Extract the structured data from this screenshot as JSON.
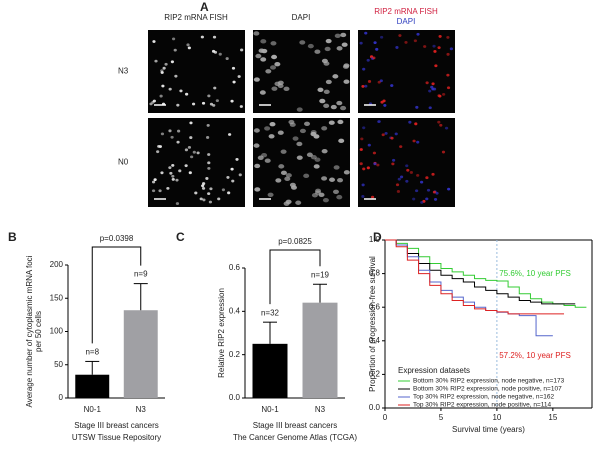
{
  "panel_a": {
    "label": "A",
    "columns": [
      "RIP2 mRNA FISH",
      "DAPI"
    ],
    "merge_lines": [
      "RIP2 mRNA FISH",
      "DAPI"
    ],
    "rows": [
      "N3",
      "N0"
    ]
  },
  "chart_data": [
    {
      "type": "bar",
      "panel": "B",
      "categories": [
        "N0-1",
        "N3"
      ],
      "values": [
        35,
        132
      ],
      "errors": [
        20,
        40
      ],
      "colors": [
        "#000000",
        "#a0a0a4"
      ],
      "ylim": [
        0,
        200
      ],
      "yticks": [
        0,
        50,
        100,
        150,
        200
      ],
      "ylabel": [
        "Average number of cytoplasmic mRNA foci",
        "per 50 cells"
      ],
      "xlabel": [
        "Stage III breast cancers",
        "UTSW Tissue Repository"
      ],
      "annotations": [
        "n=8",
        "n=9"
      ],
      "p_value": "p=0.0398"
    },
    {
      "type": "bar",
      "panel": "C",
      "categories": [
        "N0-1",
        "N3"
      ],
      "values": [
        0.25,
        0.44
      ],
      "errors": [
        0.1,
        0.085
      ],
      "colors": [
        "#000000",
        "#a0a0a4"
      ],
      "ylim": [
        0,
        0.6
      ],
      "yticks": [
        {
          "value": 0,
          "label": "0.0"
        },
        0.2,
        0.4,
        0.6
      ],
      "ylabel": [
        "Relative RIP2 expression"
      ],
      "xlabel": [
        "Stage III breast cancers",
        "The Cancer Genome Atlas (TCGA)"
      ],
      "annotations": [
        "n=32",
        "n=19"
      ],
      "p_value": "p=0.0825"
    },
    {
      "type": "line",
      "panel": "D",
      "xlim": [
        0,
        18.5
      ],
      "xticks": [
        0,
        5,
        10,
        15
      ],
      "ylim": [
        0,
        1
      ],
      "yticks": [
        {
          "value": 0,
          "label": "0.0"
        },
        0.2,
        0.4,
        0.6,
        0.8,
        {
          "value": 1,
          "label": "1.0"
        }
      ],
      "xlabel": "Survival time (years)",
      "ylabel": "Proportion of progression-free survival",
      "vline": 10,
      "legend_title": "Expression datasets",
      "series": [
        {
          "name": "Bottom 30% RIP2 expression, node negative, n=173",
          "color": "#33cc33",
          "x": [
            0,
            1,
            2,
            3,
            4,
            5,
            6,
            7,
            8,
            9,
            10,
            11,
            12,
            13,
            14,
            15,
            16,
            17,
            18
          ],
          "values": [
            1,
            0.98,
            0.95,
            0.9,
            0.86,
            0.83,
            0.81,
            0.79,
            0.77,
            0.76,
            0.756,
            0.72,
            0.68,
            0.65,
            0.63,
            0.62,
            0.61,
            0.6,
            0.6
          ]
        },
        {
          "name": "Bottom 30% RIP2 expression, node positive, n=107",
          "color": "#000000",
          "x": [
            0,
            1,
            2,
            3,
            4,
            5,
            6,
            7,
            8,
            9,
            10,
            11,
            12,
            13,
            14,
            15,
            16,
            17
          ],
          "values": [
            1,
            0.97,
            0.92,
            0.86,
            0.82,
            0.79,
            0.77,
            0.75,
            0.72,
            0.7,
            0.68,
            0.66,
            0.64,
            0.63,
            0.62,
            0.62,
            0.62,
            0.62
          ]
        },
        {
          "name": "Top 30% RIP2 expression, node negative, n=162",
          "color": "#5566cc",
          "x": [
            0,
            1,
            2,
            3,
            4,
            5,
            6,
            7,
            8,
            9,
            10,
            11,
            12,
            13,
            13.5,
            15
          ],
          "values": [
            1,
            0.97,
            0.9,
            0.82,
            0.75,
            0.7,
            0.66,
            0.63,
            0.6,
            0.58,
            0.57,
            0.56,
            0.55,
            0.55,
            0.43,
            0.43
          ]
        },
        {
          "name": "Top 30% RIP2 expression, node positive, n=114",
          "color": "#dd2222",
          "x": [
            0,
            1,
            2,
            3,
            4,
            5,
            6,
            7,
            8,
            9,
            10,
            11,
            12,
            13,
            14,
            15,
            16
          ],
          "values": [
            1,
            0.96,
            0.88,
            0.8,
            0.73,
            0.68,
            0.64,
            0.61,
            0.59,
            0.58,
            0.572,
            0.56,
            0.56,
            0.56,
            0.56,
            0.56,
            0.56
          ]
        }
      ],
      "annotations": [
        {
          "text": "75.6%, 10 year PFS",
          "color": "#33cc33"
        },
        {
          "text": "57.2%, 10 year PFS",
          "color": "#dd2222"
        }
      ]
    }
  ]
}
